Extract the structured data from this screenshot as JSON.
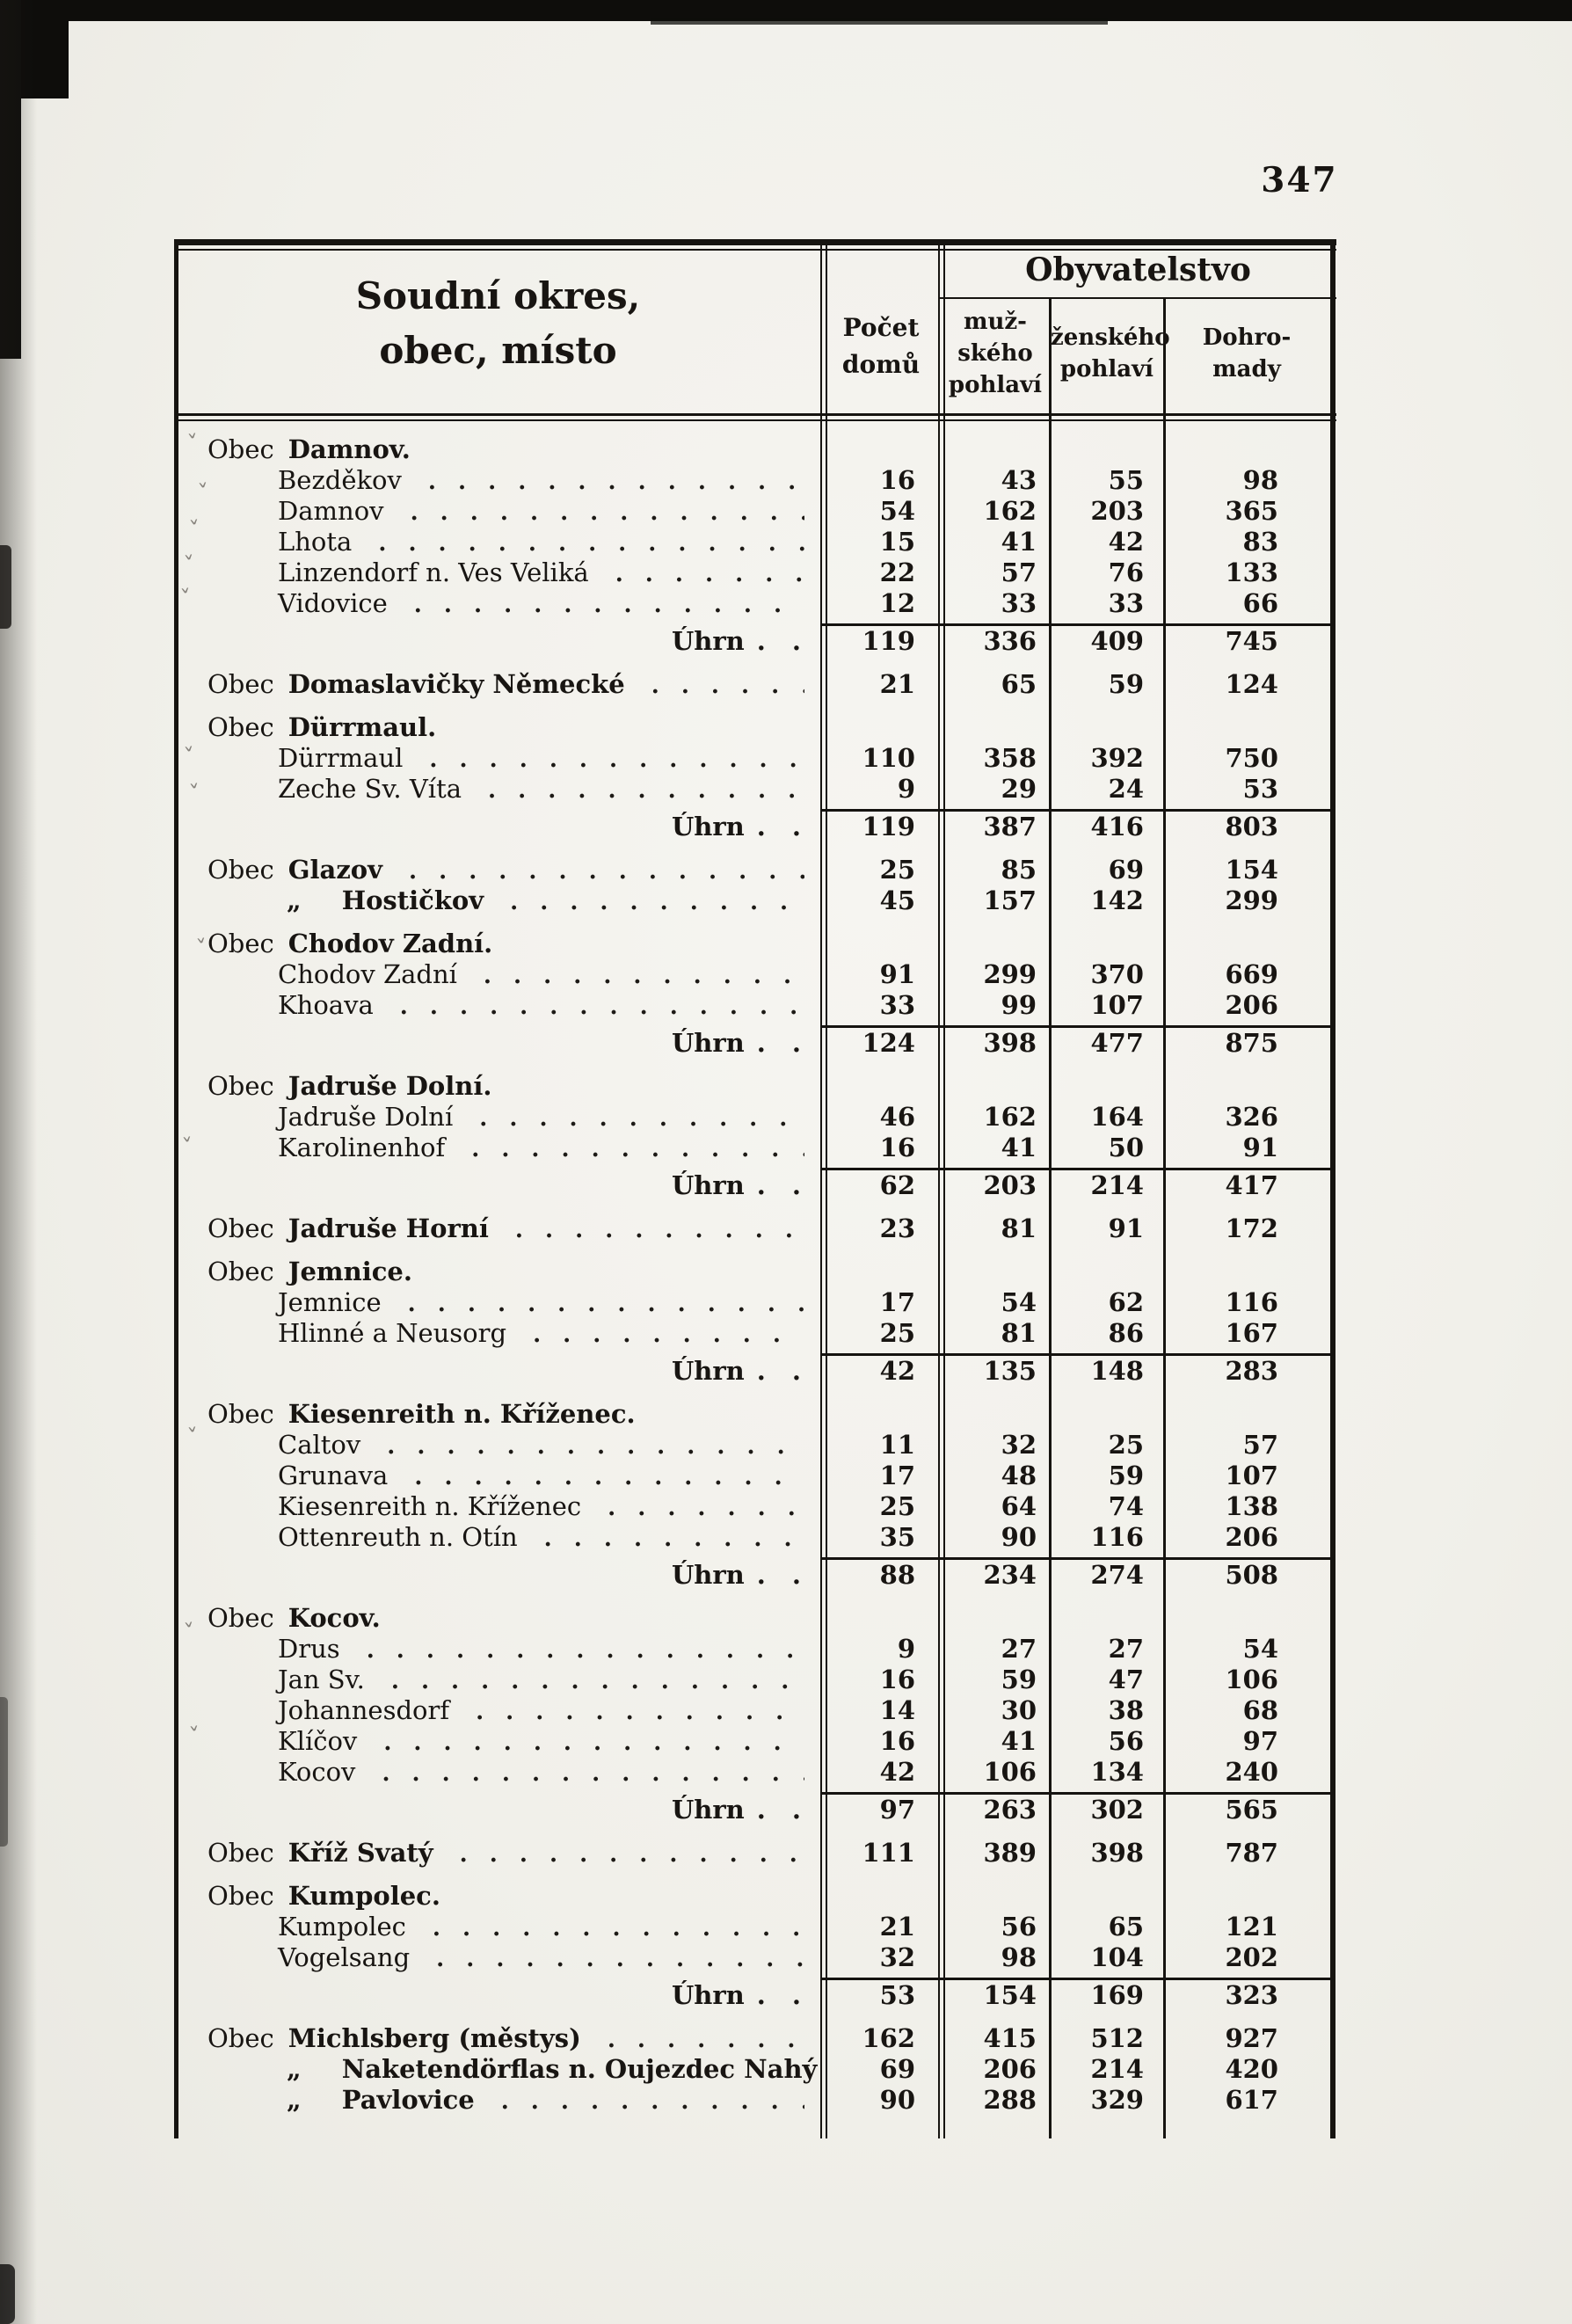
{
  "page": {
    "number": "347"
  },
  "colors": {
    "paper": "#f2f1ec",
    "ink": "#181512",
    "rule": "#161410"
  },
  "table": {
    "obec_prefix": "Obec",
    "ditto_mark": "„",
    "uhrn_label": "Úhrn",
    "header": {
      "title_line1": "Soudní okres,",
      "title_line2": "obec, místo",
      "houses_line1": "Počet",
      "houses_line2": "domů",
      "population": "Obyvatelstvo",
      "male_line1": "muž-",
      "male_line2": "ského",
      "male_line3": "pohlaví",
      "female_line1": "ženského",
      "female_line2": "pohlaví",
      "total_line1": "Dohro-",
      "total_line2": "mady"
    },
    "columns": [
      "Soudní okres, obec, místo",
      "Počet domů",
      "mužského pohlaví",
      "ženského pohlaví",
      "Dohromady"
    ],
    "rows": [
      {
        "t": "section",
        "label": "Damnov."
      },
      {
        "t": "place",
        "label": "Bezděkov",
        "v": [
          16,
          43,
          55,
          98
        ]
      },
      {
        "t": "place",
        "label": "Damnov",
        "v": [
          54,
          162,
          203,
          365
        ]
      },
      {
        "t": "place",
        "label": "Lhota",
        "v": [
          15,
          41,
          42,
          83
        ]
      },
      {
        "t": "place",
        "label": "Linzendorf n. Ves Veliká",
        "v": [
          22,
          57,
          76,
          133
        ]
      },
      {
        "t": "place",
        "label": "Vidovice",
        "v": [
          12,
          33,
          33,
          66
        ]
      },
      {
        "t": "uhrn",
        "v": [
          119,
          336,
          409,
          745
        ]
      },
      {
        "t": "obec",
        "label": "Domaslavičky Německé",
        "v": [
          21,
          65,
          59,
          124
        ]
      },
      {
        "t": "section",
        "label": "Dürrmaul."
      },
      {
        "t": "place",
        "label": "Dürrmaul",
        "v": [
          110,
          358,
          392,
          750
        ]
      },
      {
        "t": "place",
        "label": "Zeche Sv. Víta",
        "v": [
          9,
          29,
          24,
          53
        ]
      },
      {
        "t": "uhrn",
        "v": [
          119,
          387,
          416,
          803
        ]
      },
      {
        "t": "obec",
        "label": "Glazov",
        "v": [
          25,
          85,
          69,
          154
        ]
      },
      {
        "t": "ditto",
        "label": "Hostičkov",
        "v": [
          45,
          157,
          142,
          299
        ]
      },
      {
        "t": "section",
        "label": "Chodov Zadní."
      },
      {
        "t": "place",
        "label": "Chodov Zadní",
        "v": [
          91,
          299,
          370,
          669
        ]
      },
      {
        "t": "place",
        "label": "Khoava",
        "v": [
          33,
          99,
          107,
          206
        ]
      },
      {
        "t": "uhrn",
        "v": [
          124,
          398,
          477,
          875
        ]
      },
      {
        "t": "section",
        "label": "Jadruše Dolní."
      },
      {
        "t": "place",
        "label": "Jadruše Dolní",
        "v": [
          46,
          162,
          164,
          326
        ]
      },
      {
        "t": "place",
        "label": "Karolinenhof",
        "v": [
          16,
          41,
          50,
          91
        ]
      },
      {
        "t": "uhrn",
        "v": [
          62,
          203,
          214,
          417
        ]
      },
      {
        "t": "obec",
        "label": "Jadruše Horní",
        "v": [
          23,
          81,
          91,
          172
        ]
      },
      {
        "t": "section",
        "label": "Jemnice."
      },
      {
        "t": "place",
        "label": "Jemnice",
        "v": [
          17,
          54,
          62,
          116
        ]
      },
      {
        "t": "place",
        "label": "Hlinné a Neusorg",
        "v": [
          25,
          81,
          86,
          167
        ]
      },
      {
        "t": "uhrn",
        "v": [
          42,
          135,
          148,
          283
        ]
      },
      {
        "t": "section",
        "label": "Kiesenreith n. Kříženec."
      },
      {
        "t": "place",
        "label": "Caltov",
        "v": [
          11,
          32,
          25,
          57
        ]
      },
      {
        "t": "place",
        "label": "Grunava",
        "v": [
          17,
          48,
          59,
          107
        ]
      },
      {
        "t": "place",
        "label": "Kiesenreith n. Kříženec",
        "v": [
          25,
          64,
          74,
          138
        ]
      },
      {
        "t": "place",
        "label": "Ottenreuth n. Otín",
        "v": [
          35,
          90,
          116,
          206
        ]
      },
      {
        "t": "uhrn",
        "v": [
          88,
          234,
          274,
          508
        ]
      },
      {
        "t": "section",
        "label": "Kocov."
      },
      {
        "t": "place",
        "label": "Drus",
        "v": [
          9,
          27,
          27,
          54
        ]
      },
      {
        "t": "place",
        "label": "Jan Sv.",
        "v": [
          16,
          59,
          47,
          106
        ]
      },
      {
        "t": "place",
        "label": "Johannesdorf",
        "v": [
          14,
          30,
          38,
          68
        ]
      },
      {
        "t": "place",
        "label": "Klíčov",
        "v": [
          16,
          41,
          56,
          97
        ]
      },
      {
        "t": "place",
        "label": "Kocov",
        "v": [
          42,
          106,
          134,
          240
        ]
      },
      {
        "t": "uhrn",
        "v": [
          97,
          263,
          302,
          565
        ]
      },
      {
        "t": "obec",
        "label": "Kříž Svatý",
        "v": [
          111,
          389,
          398,
          787
        ]
      },
      {
        "t": "section",
        "label": "Kumpolec."
      },
      {
        "t": "place",
        "label": "Kumpolec",
        "v": [
          21,
          56,
          65,
          121
        ]
      },
      {
        "t": "place",
        "label": "Vogelsang",
        "v": [
          32,
          98,
          104,
          202
        ]
      },
      {
        "t": "uhrn",
        "v": [
          53,
          154,
          169,
          323
        ]
      },
      {
        "t": "obec",
        "label": "Michlsberg (městys)",
        "v": [
          162,
          415,
          512,
          927
        ]
      },
      {
        "t": "ditto",
        "label": "Naketendörflas n. Oujezdec Nahý",
        "v": [
          69,
          206,
          214,
          420
        ]
      },
      {
        "t": "ditto",
        "label": "Pavlovice",
        "v": [
          90,
          288,
          329,
          617
        ]
      }
    ]
  }
}
